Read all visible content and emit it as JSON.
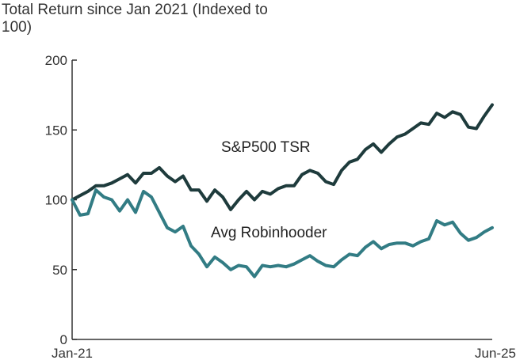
{
  "chart_data": {
    "type": "line",
    "title": "Total Return since Jan 2021 (Indexed to 100)",
    "xlabel": "",
    "ylabel": "",
    "x_tick_labels": [
      "Jan-21",
      "Jun-25"
    ],
    "ylim": [
      0,
      200
    ],
    "yticks": [
      "0",
      "50",
      "100",
      "150",
      "200"
    ],
    "grid": false,
    "legend": "none",
    "series": [
      {
        "name": "S&P500 TSR",
        "color": "#1e3b3c",
        "values": [
          100,
          103,
          106,
          110,
          110,
          112,
          115,
          118,
          112,
          119,
          119,
          123,
          117,
          113,
          117,
          107,
          107,
          99,
          107,
          102,
          93,
          100,
          106,
          100,
          106,
          104,
          108,
          110,
          110,
          118,
          121,
          119,
          113,
          111,
          121,
          127,
          129,
          136,
          140,
          134,
          140,
          145,
          147,
          151,
          155,
          154,
          162,
          159,
          163,
          161,
          152,
          151,
          160,
          168
        ]
      },
      {
        "name": "Avg Robinhooder",
        "color": "#327c84",
        "values": [
          100,
          89,
          90,
          107,
          102,
          100,
          92,
          100,
          91,
          106,
          102,
          91,
          80,
          77,
          81,
          67,
          61,
          52,
          59,
          55,
          50,
          53,
          52,
          45,
          53,
          52,
          53,
          52,
          54,
          57,
          60,
          56,
          53,
          52,
          57,
          61,
          60,
          66,
          70,
          65,
          68,
          69,
          69,
          67,
          70,
          72,
          85,
          82,
          84,
          76,
          71,
          73,
          77,
          80
        ]
      }
    ],
    "series_labels": [
      "S&P500 TSR",
      "Avg Robinhooder"
    ]
  }
}
